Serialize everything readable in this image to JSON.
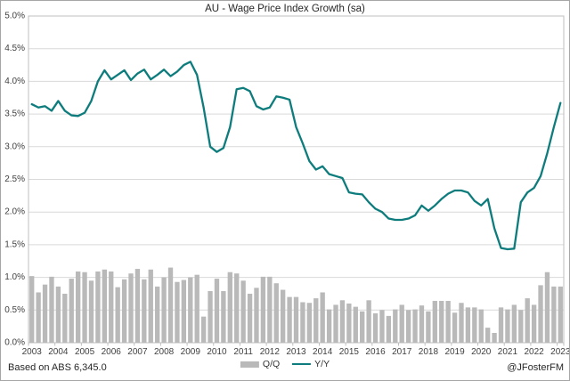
{
  "chart_data": {
    "type": "bar+line combo",
    "title": "AU - Wage Price Index Growth (sa)",
    "source_note": "Based on ABS 6,345.0",
    "watermark": "@JFosterFM",
    "frequency": "quarterly",
    "x_start": "2003 Q1",
    "x_end": "2023 Q1",
    "ylim": [
      0,
      5
    ],
    "grid": true,
    "legend_position": "bottom-center",
    "ytick_labels": [
      "5.0%",
      "4.5%",
      "4.0%",
      "3.5%",
      "3.0%",
      "2.5%",
      "2.0%",
      "1.5%",
      "1.0%",
      "0.5%",
      "0.0%"
    ],
    "year_labels": [
      "2003",
      "2004",
      "2005",
      "2006",
      "2007",
      "2008",
      "2009",
      "2010",
      "2011",
      "2012",
      "2013",
      "2014",
      "2015",
      "2016",
      "2017",
      "2018",
      "2019",
      "2020",
      "2021",
      "2022",
      "2023"
    ],
    "series": [
      {
        "name": "Q/Q",
        "type": "bar",
        "color": "#b9b9b9",
        "values": [
          1.02,
          0.77,
          0.89,
          1.01,
          0.86,
          0.75,
          0.98,
          1.09,
          1.08,
          0.95,
          1.09,
          1.12,
          1.09,
          0.85,
          0.97,
          1.06,
          1.13,
          0.97,
          1.12,
          0.86,
          1.0,
          1.15,
          0.93,
          0.96,
          1.0,
          1.04,
          0.4,
          0.79,
          0.98,
          0.79,
          1.08,
          1.06,
          0.95,
          0.75,
          0.84,
          1.01,
          1.01,
          0.91,
          0.81,
          0.7,
          0.7,
          0.62,
          0.61,
          0.68,
          0.77,
          0.51,
          0.58,
          0.65,
          0.6,
          0.55,
          0.48,
          0.65,
          0.45,
          0.5,
          0.41,
          0.51,
          0.58,
          0.5,
          0.51,
          0.57,
          0.48,
          0.64,
          0.64,
          0.64,
          0.46,
          0.61,
          0.54,
          0.54,
          0.51,
          0.23,
          0.15,
          0.54,
          0.51,
          0.58,
          0.5,
          0.68,
          0.58,
          0.88,
          1.08,
          0.86,
          0.86
        ]
      },
      {
        "name": "Y/Y",
        "type": "line",
        "color": "#0e7c7c",
        "values": [
          3.65,
          3.6,
          3.62,
          3.55,
          3.7,
          3.55,
          3.48,
          3.47,
          3.52,
          3.7,
          4.0,
          4.17,
          4.03,
          4.1,
          4.17,
          4.02,
          4.12,
          4.18,
          4.03,
          4.1,
          4.18,
          4.08,
          4.15,
          4.25,
          4.3,
          4.1,
          3.6,
          3.0,
          2.92,
          2.98,
          3.3,
          3.88,
          3.9,
          3.85,
          3.62,
          3.57,
          3.6,
          3.77,
          3.75,
          3.72,
          3.3,
          3.05,
          2.78,
          2.65,
          2.7,
          2.58,
          2.55,
          2.52,
          2.3,
          2.28,
          2.27,
          2.15,
          2.05,
          2.0,
          1.9,
          1.88,
          1.88,
          1.9,
          1.95,
          2.1,
          2.02,
          2.1,
          2.2,
          2.28,
          2.33,
          2.33,
          2.3,
          2.17,
          2.1,
          2.2,
          1.75,
          1.45,
          1.43,
          1.44,
          2.15,
          2.3,
          2.37,
          2.55,
          2.9,
          3.3,
          3.67
        ]
      }
    ],
    "colors": {
      "gridline": "#d9d9d9",
      "plot_border": "#bfbfbf",
      "axis_text": "#404040"
    }
  }
}
